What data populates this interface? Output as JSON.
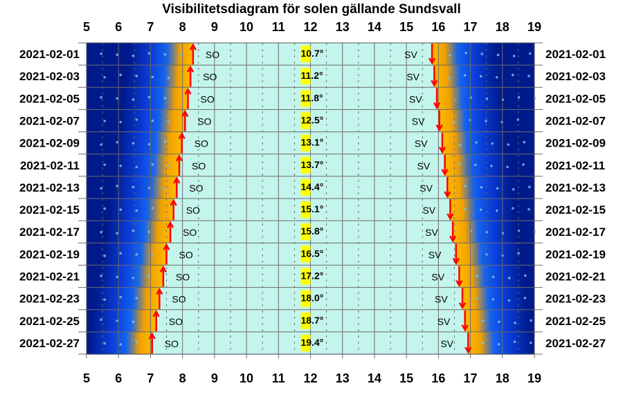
{
  "chart_data": {
    "type": "table",
    "title": "Visibilitetsdiagram för solen gällande Sundsvall",
    "x_ticks": [
      5,
      6,
      7,
      8,
      9,
      10,
      11,
      12,
      13,
      14,
      15,
      16,
      17,
      18,
      19
    ],
    "xlim": [
      5,
      19
    ],
    "grid": true,
    "rows": [
      {
        "date": "2021-02-01",
        "sunrise_h": 8.33,
        "sunset_h": 15.8,
        "noon_elevation": "10.7°",
        "rise_dir": "SO",
        "set_dir": "SV"
      },
      {
        "date": "2021-02-03",
        "sunrise_h": 8.25,
        "sunset_h": 15.87,
        "noon_elevation": "11.2°",
        "rise_dir": "SO",
        "set_dir": "SV"
      },
      {
        "date": "2021-02-05",
        "sunrise_h": 8.17,
        "sunset_h": 15.95,
        "noon_elevation": "11.8°",
        "rise_dir": "SO",
        "set_dir": "SV"
      },
      {
        "date": "2021-02-07",
        "sunrise_h": 8.08,
        "sunset_h": 16.03,
        "noon_elevation": "12.5°",
        "rise_dir": "SO",
        "set_dir": "SV"
      },
      {
        "date": "2021-02-09",
        "sunrise_h": 7.98,
        "sunset_h": 16.12,
        "noon_elevation": "13.1°",
        "rise_dir": "SO",
        "set_dir": "SV"
      },
      {
        "date": "2021-02-11",
        "sunrise_h": 7.9,
        "sunset_h": 16.2,
        "noon_elevation": "13.7°",
        "rise_dir": "SO",
        "set_dir": "SV"
      },
      {
        "date": "2021-02-13",
        "sunrise_h": 7.82,
        "sunset_h": 16.28,
        "noon_elevation": "14.4°",
        "rise_dir": "SO",
        "set_dir": "SV"
      },
      {
        "date": "2021-02-15",
        "sunrise_h": 7.72,
        "sunset_h": 16.37,
        "noon_elevation": "15.1°",
        "rise_dir": "SO",
        "set_dir": "SV"
      },
      {
        "date": "2021-02-17",
        "sunrise_h": 7.62,
        "sunset_h": 16.45,
        "noon_elevation": "15.8°",
        "rise_dir": "SO",
        "set_dir": "SV"
      },
      {
        "date": "2021-02-19",
        "sunrise_h": 7.5,
        "sunset_h": 16.55,
        "noon_elevation": "16.5°",
        "rise_dir": "SO",
        "set_dir": "SV"
      },
      {
        "date": "2021-02-21",
        "sunrise_h": 7.4,
        "sunset_h": 16.65,
        "noon_elevation": "17.2°",
        "rise_dir": "SO",
        "set_dir": "SV"
      },
      {
        "date": "2021-02-23",
        "sunrise_h": 7.28,
        "sunset_h": 16.75,
        "noon_elevation": "18.0°",
        "rise_dir": "SO",
        "set_dir": "SV"
      },
      {
        "date": "2021-02-25",
        "sunrise_h": 7.18,
        "sunset_h": 16.83,
        "noon_elevation": "18.7°",
        "rise_dir": "SO",
        "set_dir": "SV"
      },
      {
        "date": "2021-02-27",
        "sunrise_h": 7.05,
        "sunset_h": 16.93,
        "noon_elevation": "19.4°",
        "rise_dir": "SO",
        "set_dir": "SV"
      }
    ],
    "colors": {
      "day": "#c4f5ec",
      "twilight_mid": "#f5b800",
      "twilight_blue": "#1464f0",
      "night": "#001a8c",
      "arrow": "#ff0000",
      "arrow_outline": "#c00000",
      "label_highlight": "#ffff00",
      "grid": "#6a6a6a"
    }
  }
}
